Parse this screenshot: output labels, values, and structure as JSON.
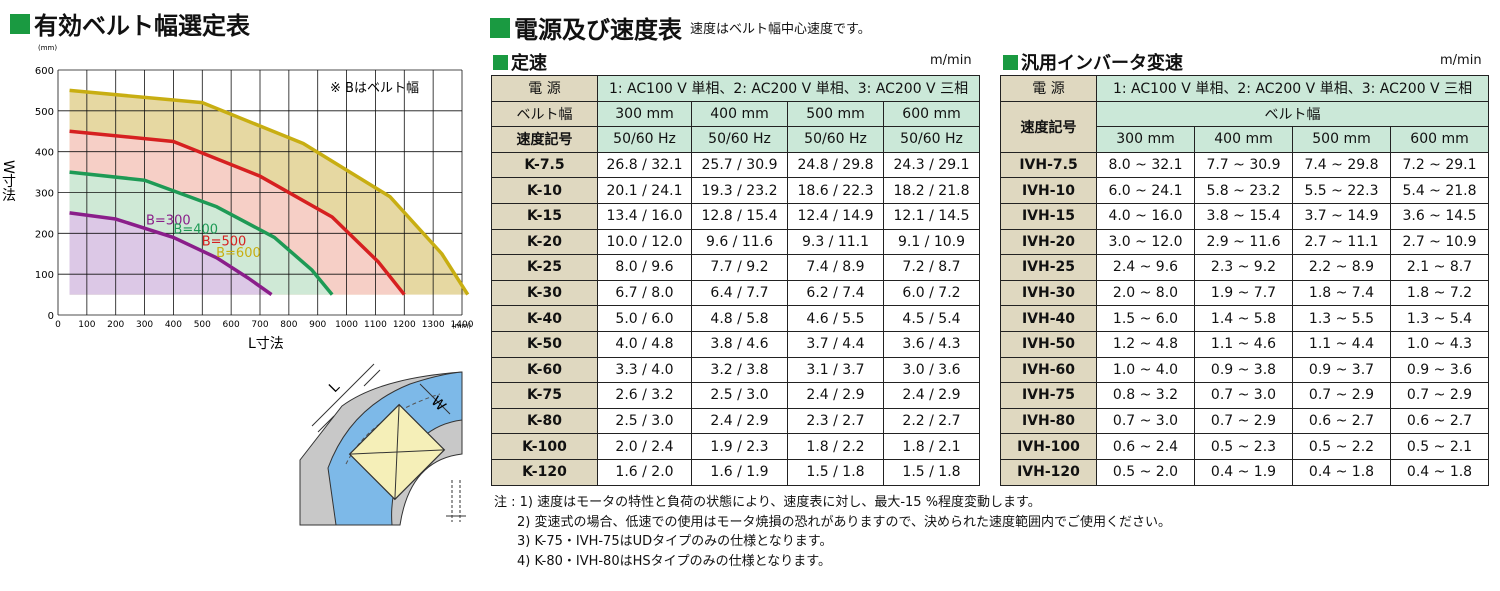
{
  "left": {
    "title": "有効ベルト幅選定表",
    "chart_data": {
      "type": "line",
      "xlabel": "L寸法",
      "ylabel": "W寸法",
      "unit_label": "(mm)",
      "xlim": [
        0,
        1400
      ],
      "ylim": [
        0,
        600
      ],
      "x_ticks": [
        "0",
        "100",
        "200",
        "300",
        "400",
        "500",
        "600",
        "700",
        "800",
        "900",
        "1000",
        "1100",
        "1200",
        "1300",
        "1400"
      ],
      "y_ticks": [
        "0",
        "100",
        "200",
        "300",
        "400",
        "500",
        "600"
      ],
      "note": "※ Bはベルト幅",
      "grid": true,
      "series": [
        {
          "name": "B=300",
          "color": "#8a1e8a",
          "fill": "#dcc8e6",
          "x": [
            40,
            200,
            400,
            550,
            660,
            740
          ],
          "y": [
            250,
            235,
            190,
            140,
            90,
            50
          ]
        },
        {
          "name": "B=400",
          "color": "#1e9a55",
          "fill": "#cfe9d6",
          "x": [
            40,
            300,
            550,
            750,
            880,
            950
          ],
          "y": [
            350,
            330,
            265,
            190,
            110,
            50
          ]
        },
        {
          "name": "B=500",
          "color": "#d62020",
          "fill": "#f6cfc6",
          "x": [
            40,
            400,
            700,
            950,
            1110,
            1200
          ],
          "y": [
            450,
            425,
            340,
            240,
            130,
            50
          ]
        },
        {
          "name": "B=600",
          "color": "#c8ae12",
          "fill": "#e6d8a2",
          "x": [
            40,
            500,
            850,
            1150,
            1330,
            1420
          ],
          "y": [
            550,
            520,
            420,
            290,
            150,
            50
          ]
        }
      ]
    },
    "diagram": {
      "label_l": "L",
      "label_w": "W"
    }
  },
  "right": {
    "title": "電源及び速度表",
    "subtitle": "速度はベルト幅中心速度です。",
    "fixed": {
      "title": "定速",
      "unit": "m/min",
      "power_label": "電 源",
      "power_value": "1: AC100 V 単相、2: AC200 V 単相、3: AC200 V 三相",
      "belt_label": "ベルト幅",
      "widths": [
        "300 mm",
        "400 mm",
        "500 mm",
        "600 mm"
      ],
      "code_label": "速度記号",
      "freqs": [
        "50/60 Hz",
        "50/60 Hz",
        "50/60 Hz",
        "50/60 Hz"
      ],
      "rows": [
        {
          "code": "K-7.5",
          "v": [
            "26.8 / 32.1",
            "25.7 / 30.9",
            "24.8 / 29.8",
            "24.3 / 29.1"
          ]
        },
        {
          "code": "K-10",
          "v": [
            "20.1 / 24.1",
            "19.3 / 23.2",
            "18.6 / 22.3",
            "18.2 / 21.8"
          ]
        },
        {
          "code": "K-15",
          "v": [
            "13.4 / 16.0",
            "12.8 / 15.4",
            "12.4 / 14.9",
            "12.1 / 14.5"
          ]
        },
        {
          "code": "K-20",
          "v": [
            "10.0 / 12.0",
            "9.6 / 11.6",
            "9.3 / 11.1",
            "9.1 / 10.9"
          ]
        },
        {
          "code": "K-25",
          "v": [
            "8.0 / 9.6",
            "7.7 / 9.2",
            "7.4 / 8.9",
            "7.2 / 8.7"
          ]
        },
        {
          "code": "K-30",
          "v": [
            "6.7 / 8.0",
            "6.4 / 7.7",
            "6.2 / 7.4",
            "6.0 / 7.2"
          ]
        },
        {
          "code": "K-40",
          "v": [
            "5.0 / 6.0",
            "4.8 / 5.8",
            "4.6 / 5.5",
            "4.5 / 5.4"
          ]
        },
        {
          "code": "K-50",
          "v": [
            "4.0 / 4.8",
            "3.8 / 4.6",
            "3.7 / 4.4",
            "3.6 / 4.3"
          ]
        },
        {
          "code": "K-60",
          "v": [
            "3.3 / 4.0",
            "3.2 / 3.8",
            "3.1 / 3.7",
            "3.0 / 3.6"
          ]
        },
        {
          "code": "K-75",
          "v": [
            "2.6 / 3.2",
            "2.5 / 3.0",
            "2.4 / 2.9",
            "2.4 / 2.9"
          ]
        },
        {
          "code": "K-80",
          "v": [
            "2.5 / 3.0",
            "2.4 / 2.9",
            "2.3 / 2.7",
            "2.2 / 2.7"
          ]
        },
        {
          "code": "K-100",
          "v": [
            "2.0 / 2.4",
            "1.9 / 2.3",
            "1.8 / 2.2",
            "1.8 / 2.1"
          ]
        },
        {
          "code": "K-120",
          "v": [
            "1.6 / 2.0",
            "1.6 / 1.9",
            "1.5 / 1.8",
            "1.5 / 1.8"
          ]
        }
      ]
    },
    "inverter": {
      "title": "汎用インバータ変速",
      "unit": "m/min",
      "power_label": "電 源",
      "power_value": "1: AC100 V 単相、2: AC200 V 単相、3: AC200 V 三相",
      "code_label": "速度記号",
      "belt_label": "ベルト幅",
      "widths": [
        "300 mm",
        "400 mm",
        "500 mm",
        "600 mm"
      ],
      "rows": [
        {
          "code": "IVH-7.5",
          "v": [
            "8.0 ~ 32.1",
            "7.7 ~ 30.9",
            "7.4 ~ 29.8",
            "7.2 ~ 29.1"
          ]
        },
        {
          "code": "IVH-10",
          "v": [
            "6.0 ~ 24.1",
            "5.8 ~ 23.2",
            "5.5 ~ 22.3",
            "5.4 ~ 21.8"
          ]
        },
        {
          "code": "IVH-15",
          "v": [
            "4.0 ~ 16.0",
            "3.8 ~ 15.4",
            "3.7 ~ 14.9",
            "3.6 ~ 14.5"
          ]
        },
        {
          "code": "IVH-20",
          "v": [
            "3.0 ~ 12.0",
            "2.9 ~ 11.6",
            "2.7 ~ 11.1",
            "2.7 ~ 10.9"
          ]
        },
        {
          "code": "IVH-25",
          "v": [
            "2.4 ~ 9.6",
            "2.3 ~ 9.2",
            "2.2 ~ 8.9",
            "2.1 ~ 8.7"
          ]
        },
        {
          "code": "IVH-30",
          "v": [
            "2.0 ~ 8.0",
            "1.9 ~ 7.7",
            "1.8 ~ 7.4",
            "1.8 ~ 7.2"
          ]
        },
        {
          "code": "IVH-40",
          "v": [
            "1.5 ~ 6.0",
            "1.4 ~ 5.8",
            "1.3 ~ 5.5",
            "1.3 ~ 5.4"
          ]
        },
        {
          "code": "IVH-50",
          "v": [
            "1.2 ~ 4.8",
            "1.1 ~ 4.6",
            "1.1 ~ 4.4",
            "1.0 ~ 4.3"
          ]
        },
        {
          "code": "IVH-60",
          "v": [
            "1.0 ~ 4.0",
            "0.9 ~ 3.8",
            "0.9 ~ 3.7",
            "0.9 ~ 3.6"
          ]
        },
        {
          "code": "IVH-75",
          "v": [
            "0.8 ~ 3.2",
            "0.7 ~ 3.0",
            "0.7 ~ 2.9",
            "0.7 ~ 2.9"
          ]
        },
        {
          "code": "IVH-80",
          "v": [
            "0.7 ~ 3.0",
            "0.7 ~ 2.9",
            "0.6 ~ 2.7",
            "0.6 ~ 2.7"
          ]
        },
        {
          "code": "IVH-100",
          "v": [
            "0.6 ~ 2.4",
            "0.5 ~ 2.3",
            "0.5 ~ 2.2",
            "0.5 ~ 2.1"
          ]
        },
        {
          "code": "IVH-120",
          "v": [
            "0.5 ~ 2.0",
            "0.4 ~ 1.9",
            "0.4 ~ 1.8",
            "0.4 ~ 1.8"
          ]
        }
      ]
    },
    "notes": [
      "注 : 1) 速度はモータの特性と負荷の状態により、速度表に対し、最大-15 %程度変動します。",
      "2) 変速式の場合、低速での使用はモータ焼損の恐れがありますので、決められた速度範囲内でご使用ください。",
      "3) K-75・IVH-75はUDタイプのみの仕様となります。",
      "4) K-80・IVH-80はHSタイプのみの仕様となります。"
    ]
  }
}
